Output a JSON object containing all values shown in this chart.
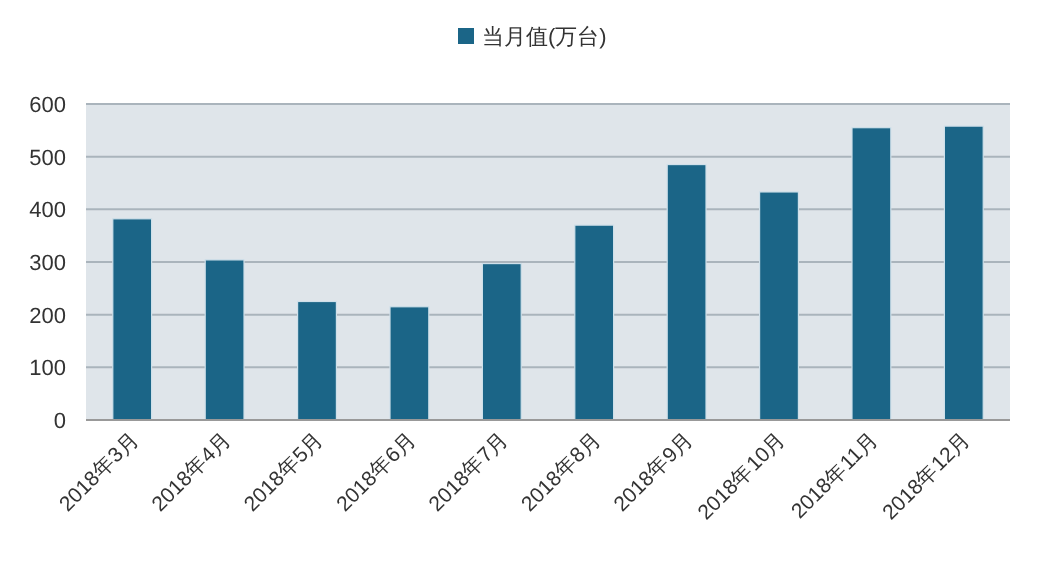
{
  "chart_data": {
    "type": "bar",
    "categories": [
      "2018年3月",
      "2018年4月",
      "2018年5月",
      "2018年6月",
      "2018年7月",
      "2018年8月",
      "2018年9月",
      "2018年10月",
      "2018年11月",
      "2018年12月"
    ],
    "series": [
      {
        "name": "当月值(万台)",
        "color": "#1b6587",
        "values": [
          382,
          304,
          225,
          215,
          297,
          370,
          485,
          433,
          555,
          558
        ]
      }
    ],
    "ylim": [
      0,
      600
    ],
    "yticks": [
      0,
      100,
      200,
      300,
      400,
      500,
      600
    ],
    "grid": "y",
    "legend": "top"
  }
}
